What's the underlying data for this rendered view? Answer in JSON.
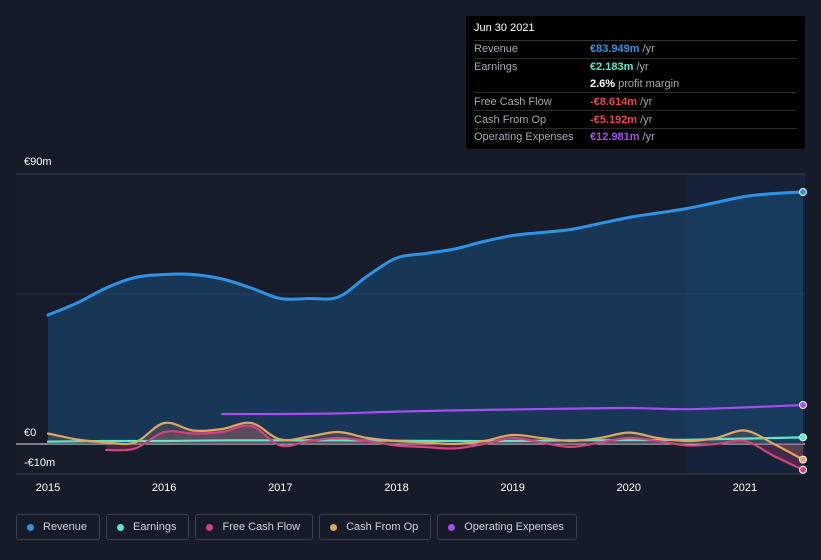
{
  "tooltip": {
    "date": "Jun 30 2021",
    "rows": [
      {
        "label": "Revenue",
        "value": "€83.949m",
        "unit": "/yr",
        "color": "#2e93e6"
      },
      {
        "label": "Earnings",
        "value": "€2.183m",
        "unit": "/yr",
        "color": "#5ee6c8"
      },
      {
        "label": "",
        "value": "2.6%",
        "unit": "profit margin",
        "color": "#ffffff"
      },
      {
        "label": "Free Cash Flow",
        "value": "-€8.614m",
        "unit": "/yr",
        "color": "#e8434f"
      },
      {
        "label": "Cash From Op",
        "value": "-€5.192m",
        "unit": "/yr",
        "color": "#e8434f"
      },
      {
        "label": "Operating Expenses",
        "value": "€12.981m",
        "unit": "/yr",
        "color": "#a44ef2"
      }
    ]
  },
  "legend": [
    {
      "label": "Revenue",
      "color": "#2e93e6"
    },
    {
      "label": "Earnings",
      "color": "#5ee6c8"
    },
    {
      "label": "Free Cash Flow",
      "color": "#d3437e"
    },
    {
      "label": "Cash From Op",
      "color": "#e0a660"
    },
    {
      "label": "Operating Expenses",
      "color": "#a44ef2"
    }
  ],
  "chart_data": {
    "type": "line",
    "y_tick_labels": [
      "€90m",
      "€0",
      "-€10m"
    ],
    "x_tick_labels": [
      "2015",
      "2016",
      "2017",
      "2018",
      "2019",
      "2020",
      "2021"
    ],
    "ylim": [
      -10,
      90
    ],
    "xlim": [
      2015.0,
      2021.5
    ],
    "highlight_from": 2020.5,
    "series": [
      {
        "name": "Revenue",
        "color": "#2e93e6",
        "x": [
          2015.0,
          2015.25,
          2015.5,
          2015.75,
          2016.0,
          2016.25,
          2016.5,
          2016.75,
          2017.0,
          2017.25,
          2017.5,
          2017.75,
          2018.0,
          2018.25,
          2018.5,
          2018.75,
          2019.0,
          2019.25,
          2019.5,
          2019.75,
          2020.0,
          2020.25,
          2020.5,
          2020.75,
          2021.0,
          2021.25,
          2021.5
        ],
        "values": [
          43,
          47,
          52,
          55.5,
          56.5,
          56.5,
          55,
          52,
          48.5,
          48.5,
          49,
          56,
          62,
          63.5,
          65,
          67.5,
          69.5,
          70.5,
          71.5,
          73.5,
          75.5,
          77,
          78.5,
          80.5,
          82.5,
          83.5,
          84
        ]
      },
      {
        "name": "Earnings",
        "color": "#5ee6c8",
        "x": [
          2015.0,
          2015.5,
          2016.0,
          2016.5,
          2017.0,
          2017.5,
          2018.0,
          2018.5,
          2019.0,
          2019.5,
          2020.0,
          2020.5,
          2021.0,
          2021.5
        ],
        "values": [
          0.8,
          1.0,
          1.0,
          1.2,
          1.2,
          1.2,
          1.1,
          1.0,
          1.0,
          1.2,
          1.3,
          1.4,
          1.8,
          2.2
        ]
      },
      {
        "name": "Free Cash Flow",
        "color": "#d3437e",
        "x": [
          2015.5,
          2015.75,
          2016.0,
          2016.25,
          2016.5,
          2016.75,
          2017.0,
          2017.25,
          2017.5,
          2017.75,
          2018.0,
          2018.25,
          2018.5,
          2018.75,
          2019.0,
          2019.25,
          2019.5,
          2019.75,
          2020.0,
          2020.25,
          2020.5,
          2020.75,
          2021.0,
          2021.25,
          2021.5
        ],
        "values": [
          -2,
          -1.5,
          4,
          3.5,
          4,
          6,
          -0.5,
          1,
          2,
          1,
          -0.5,
          -1,
          -1.5,
          0,
          2,
          0.5,
          -1,
          0.5,
          2,
          1,
          -0.5,
          0,
          1,
          -4,
          -8.6
        ]
      },
      {
        "name": "Cash From Op",
        "color": "#e0a660",
        "x": [
          2015.0,
          2015.25,
          2015.5,
          2015.75,
          2016.0,
          2016.25,
          2016.5,
          2016.75,
          2017.0,
          2017.25,
          2017.5,
          2017.75,
          2018.0,
          2018.25,
          2018.5,
          2018.75,
          2019.0,
          2019.25,
          2019.5,
          2019.75,
          2020.0,
          2020.25,
          2020.5,
          2020.75,
          2021.0,
          2021.25,
          2021.5
        ],
        "values": [
          3.5,
          1.5,
          0.5,
          0.5,
          7,
          4.5,
          5,
          7,
          1.5,
          2.5,
          4,
          2,
          1,
          0.5,
          0,
          1,
          3,
          2,
          1,
          2,
          3.8,
          2,
          1,
          2,
          4.5,
          0,
          -5.2
        ]
      },
      {
        "name": "Operating Expenses",
        "color": "#a44ef2",
        "x": [
          2016.5,
          2017.0,
          2017.5,
          2018.0,
          2018.5,
          2019.0,
          2019.5,
          2020.0,
          2020.5,
          2021.0,
          2021.5
        ],
        "values": [
          10,
          10,
          10.2,
          10.8,
          11.2,
          11.5,
          11.8,
          12,
          11.6,
          12.2,
          13
        ]
      }
    ]
  }
}
